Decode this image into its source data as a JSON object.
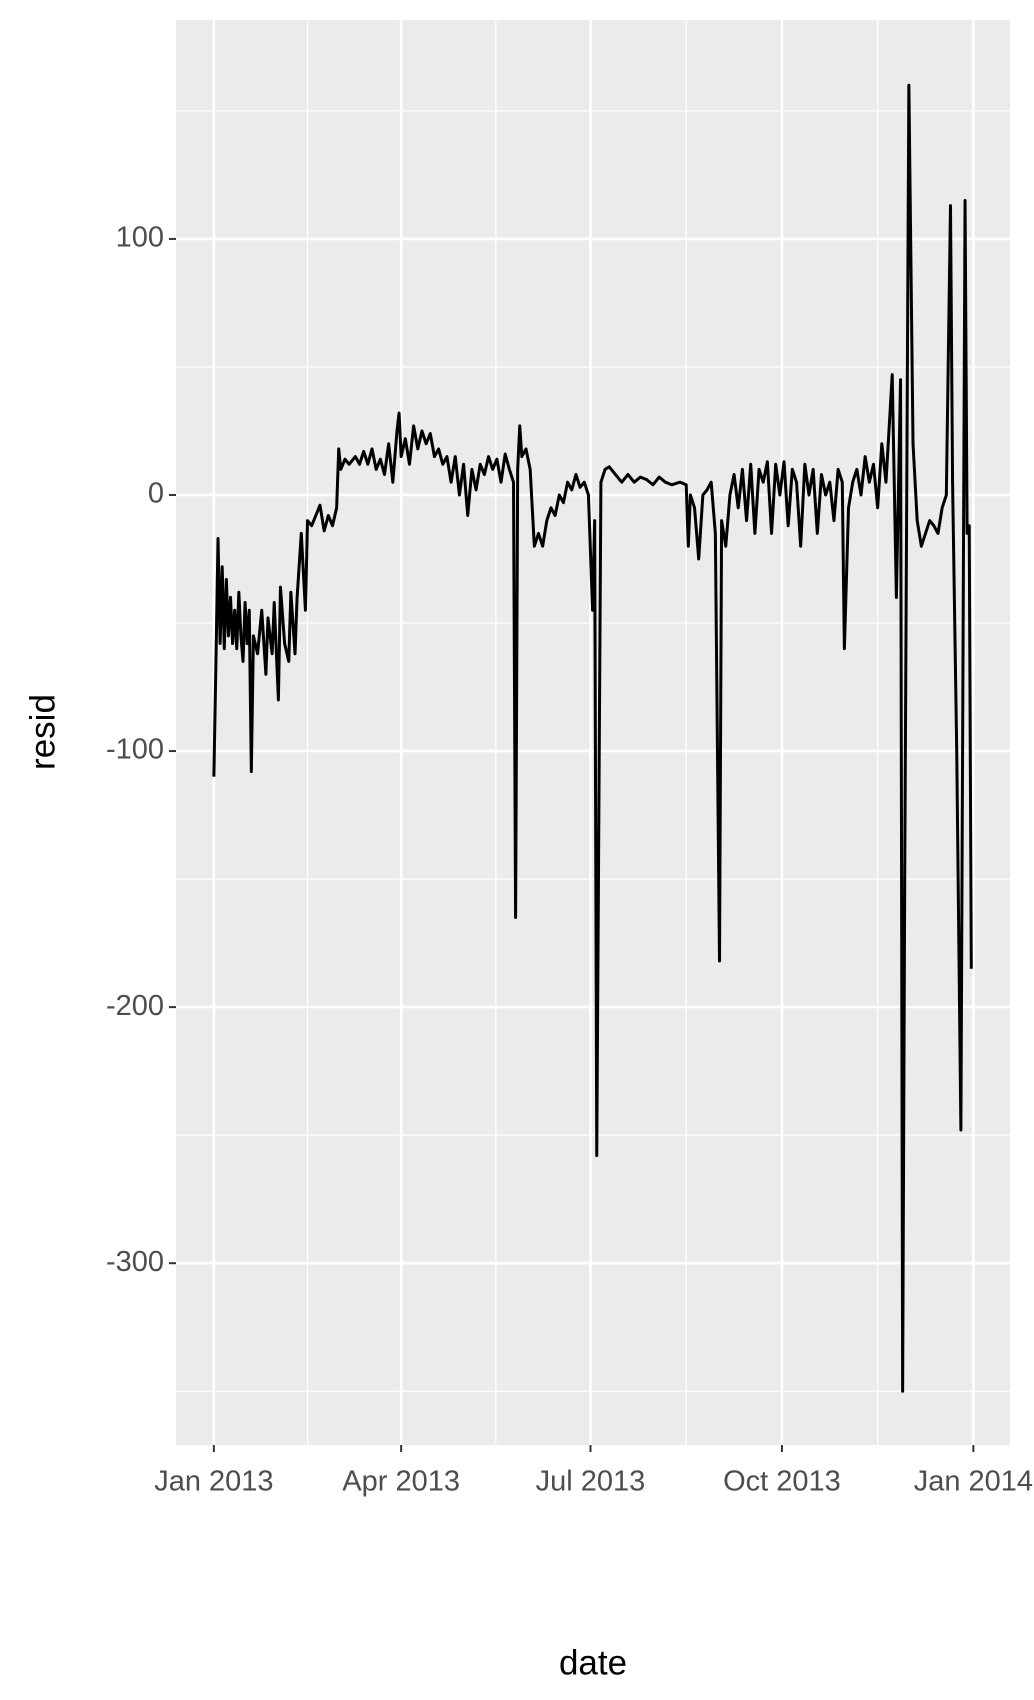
{
  "chart_data": {
    "type": "line",
    "xlabel": "date",
    "ylabel": "resid",
    "color": "#000000",
    "grid": true,
    "xlim": [
      -18.2,
      382.6
    ],
    "ylim": [
      -371,
      185.5
    ],
    "xticks": [
      {
        "value": 0,
        "label": "Jan 2013"
      },
      {
        "value": 90,
        "label": "Apr 2013"
      },
      {
        "value": 181,
        "label": "Jul 2013"
      },
      {
        "value": 273,
        "label": "Oct 2013"
      },
      {
        "value": 365,
        "label": "Jan 2014"
      }
    ],
    "yticks": [
      100,
      0,
      -100,
      -200,
      -300
    ],
    "xminor": [
      45,
      135.5,
      227,
      319
    ],
    "yminor": [
      150,
      50,
      -50,
      -150,
      -250,
      -350
    ],
    "series": [
      {
        "name": "resid",
        "color": "#000000",
        "x": [
          0,
          1,
          2,
          3,
          4,
          5,
          6,
          7,
          8,
          9,
          10,
          11,
          12,
          13,
          14,
          15,
          16,
          17,
          18,
          19,
          21,
          23,
          25,
          26,
          28,
          29,
          31,
          32,
          34,
          36,
          37,
          39,
          40,
          42,
          44,
          45,
          47,
          49,
          51,
          53,
          55,
          57,
          59,
          60,
          61,
          63,
          65,
          68,
          70,
          72,
          74,
          76,
          78,
          80,
          82,
          84,
          86,
          88,
          89,
          90,
          92,
          94,
          96,
          98,
          100,
          102,
          104,
          106,
          108,
          110,
          112,
          114,
          116,
          118,
          120,
          122,
          124,
          126,
          128,
          130,
          132,
          134,
          136,
          138,
          140,
          142,
          144,
          145,
          146,
          147,
          148,
          150,
          152,
          154,
          156,
          158,
          160,
          162,
          164,
          166,
          168,
          170,
          172,
          174,
          176,
          178,
          180,
          182,
          183,
          184,
          186,
          188,
          190,
          193,
          196,
          199,
          202,
          205,
          208,
          211,
          214,
          217,
          220,
          224,
          227,
          228,
          229,
          231,
          233,
          235,
          237,
          239,
          241,
          243,
          244,
          246,
          248,
          250,
          252,
          254,
          256,
          258,
          260,
          262,
          264,
          266,
          268,
          270,
          272,
          274,
          276,
          278,
          280,
          282,
          284,
          286,
          288,
          290,
          292,
          294,
          296,
          298,
          300,
          302,
          303,
          305,
          307,
          309,
          311,
          313,
          315,
          317,
          319,
          321,
          323,
          326,
          328,
          330,
          331,
          332,
          334,
          336,
          338,
          340,
          342,
          344,
          346,
          348,
          350,
          352,
          354,
          355,
          357,
          359,
          361,
          362,
          363,
          364
        ],
        "values": [
          -110,
          -65,
          -17,
          -58,
          -28,
          -60,
          -33,
          -55,
          -40,
          -58,
          -45,
          -60,
          -38,
          -55,
          -65,
          -42,
          -58,
          -45,
          -108,
          -55,
          -62,
          -45,
          -70,
          -48,
          -62,
          -42,
          -80,
          -36,
          -58,
          -65,
          -38,
          -62,
          -40,
          -15,
          -45,
          -10,
          -12,
          -8,
          -4,
          -14,
          -8,
          -12,
          -5,
          18,
          10,
          14,
          12,
          15,
          12,
          17,
          12,
          18,
          10,
          14,
          8,
          20,
          5,
          25,
          32,
          15,
          22,
          12,
          27,
          18,
          25,
          20,
          24,
          15,
          18,
          12,
          15,
          5,
          15,
          0,
          12,
          -8,
          10,
          2,
          12,
          8,
          15,
          10,
          14,
          5,
          16,
          10,
          5,
          -165,
          10,
          27,
          15,
          18,
          10,
          -20,
          -15,
          -20,
          -10,
          -5,
          -8,
          0,
          -3,
          5,
          2,
          8,
          3,
          5,
          0,
          -45,
          -10,
          -258,
          5,
          10,
          11,
          8,
          5,
          8,
          5,
          7,
          6,
          4,
          7,
          5,
          4,
          5,
          4,
          -20,
          0,
          -5,
          -25,
          0,
          2,
          5,
          -15,
          -182,
          -10,
          -20,
          0,
          8,
          -5,
          10,
          -10,
          12,
          -15,
          10,
          5,
          13,
          -15,
          12,
          0,
          13,
          -12,
          10,
          5,
          -20,
          12,
          0,
          10,
          -15,
          8,
          0,
          5,
          -10,
          10,
          5,
          -60,
          -5,
          5,
          10,
          0,
          15,
          5,
          12,
          -5,
          20,
          5,
          47,
          -40,
          45,
          -350,
          -150,
          160,
          20,
          -10,
          -20,
          -15,
          -10,
          -12,
          -15,
          -5,
          0,
          113,
          5,
          -100,
          -248,
          115,
          -15,
          -12,
          -185
        ]
      }
    ]
  }
}
